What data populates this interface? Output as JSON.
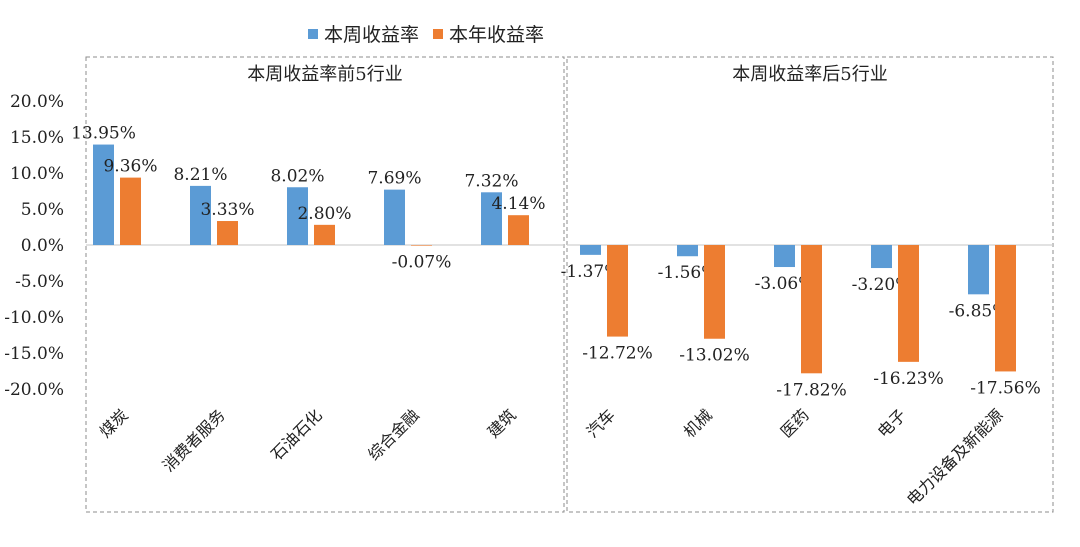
{
  "chart_data": {
    "type": "bar",
    "legend": {
      "placement": "top-center",
      "items": [
        {
          "name": "本周收益率",
          "color": "#5B9BD5"
        },
        {
          "name": "本年收益率",
          "color": "#ED7D31"
        }
      ]
    },
    "y_ticks": [
      "20.0%",
      "15.0%",
      "10.0%",
      "5.0%",
      "0.0%",
      "-5.0%",
      "-10.0%",
      "-15.0%",
      "-20.0%"
    ],
    "ylim": [
      -20,
      20
    ],
    "grid": false,
    "panels": [
      {
        "title": "本周收益率前5行业",
        "categories": [
          "煤炭",
          "消费者服务",
          "石油石化",
          "综合金融",
          "建筑"
        ],
        "series": [
          {
            "name": "本周收益率",
            "values": [
              13.95,
              8.21,
              8.02,
              7.69,
              7.32
            ],
            "labels": [
              "13.95%",
              "8.21%",
              "8.02%",
              "7.69%",
              "7.32%"
            ]
          },
          {
            "name": "本年收益率",
            "values": [
              9.36,
              3.33,
              2.8,
              -0.07,
              4.14
            ],
            "labels": [
              "9.36%",
              "3.33%",
              "2.80%",
              "-0.07%",
              "4.14%"
            ]
          }
        ]
      },
      {
        "title": "本周收益率后5行业",
        "categories": [
          "汽车",
          "机械",
          "医药",
          "电子",
          "电力设备及新能源"
        ],
        "series": [
          {
            "name": "本周收益率",
            "values": [
              -1.37,
              -1.56,
              -3.06,
              -3.2,
              -6.85
            ],
            "labels": [
              "-1.37%",
              "-1.56%",
              "-3.06%",
              "-3.20%",
              "-6.85%"
            ]
          },
          {
            "name": "本年收益率",
            "values": [
              -12.72,
              -13.02,
              -17.82,
              -16.23,
              -17.56
            ],
            "labels": [
              "-12.72%",
              "-13.02%",
              "-17.82%",
              "-16.23%",
              "-17.56%"
            ]
          }
        ]
      }
    ]
  }
}
